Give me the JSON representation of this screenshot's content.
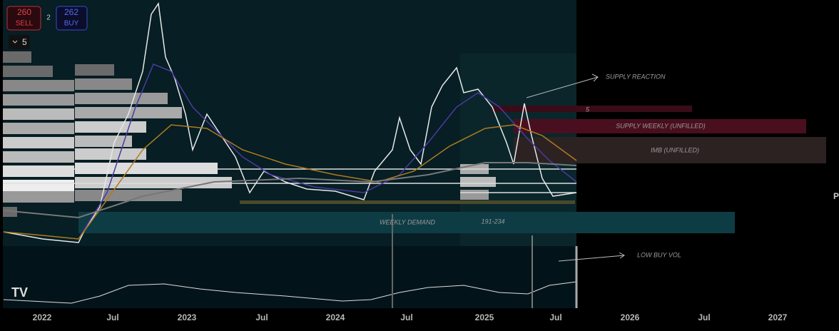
{
  "toolbar": {
    "sell": {
      "price": "260",
      "label": "SELL"
    },
    "spread": "2",
    "buy": {
      "price": "262",
      "label": "BUY"
    },
    "interval": "5"
  },
  "annotations": {
    "supply_reaction": "SUPPLY REACTION",
    "level": "5",
    "supply_weekly": "SUPPLY WEEKLY (UNFILLED)",
    "imb": "IMB (UNFILLED)",
    "weekly_demand": "WEEKLY DEMAND",
    "demand_range": "191-234",
    "low_buy_vol": "LOW BUY VOL",
    "edge": "P"
  },
  "time_axis": [
    "2022",
    "Jul",
    "2023",
    "Jul",
    "2024",
    "Jul",
    "2025",
    "Jul",
    "2026",
    "Jul",
    "2027"
  ]
}
